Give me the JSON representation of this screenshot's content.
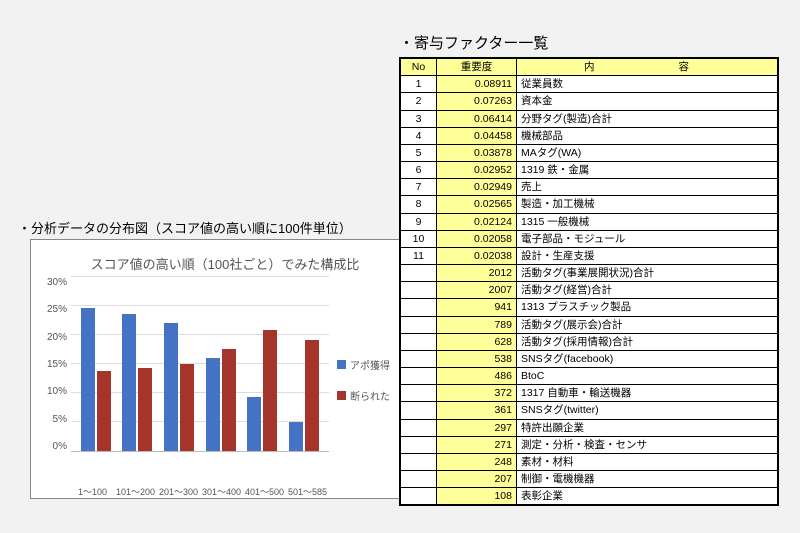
{
  "chart_section_label": "・分析データの分布図（スコア値の高い順に100件単位）",
  "table_section_label": "・寄与ファクター一覧",
  "chart": {
    "type": "bar",
    "title": "スコア値の高い順（100社ごと）でみた構成比",
    "categories": [
      "1～100",
      "101～200",
      "201～300",
      "301～400",
      "401～500",
      "501～585"
    ],
    "series": [
      {
        "name": "アポ獲得",
        "color": "#4472c4",
        "values": [
          24.5,
          23.5,
          22,
          16,
          9.2,
          5
        ]
      },
      {
        "name": "断られた",
        "color": "#a5352b",
        "values": [
          13.8,
          14.2,
          15,
          17.5,
          20.7,
          19
        ]
      }
    ],
    "y_max": 30,
    "y_tick": 5,
    "y_suffix": "%",
    "grid_color": "#dddddd",
    "axis_color": "#bbbbbb",
    "background": "#ffffff",
    "title_fontsize": 13,
    "label_fontsize": 10
  },
  "table": {
    "columns": [
      "No",
      "重要度",
      "内　　容"
    ],
    "rows": [
      [
        1,
        "0.08911",
        "従業員数"
      ],
      [
        2,
        "0.07263",
        "資本金"
      ],
      [
        3,
        "0.06414",
        "分野タグ(製造)合計"
      ],
      [
        4,
        "0.04458",
        "機械部品"
      ],
      [
        5,
        "0.03878",
        "MAタグ(WA)"
      ],
      [
        6,
        "0.02952",
        "1319 鉄・金属"
      ],
      [
        7,
        "0.02949",
        "売上"
      ],
      [
        8,
        "0.02565",
        "製造・加工機械"
      ],
      [
        9,
        "0.02124",
        "1315 一般機械"
      ],
      [
        10,
        "0.02058",
        "電子部品・モジュール"
      ],
      [
        11,
        "0.02038",
        "設計・生産支援"
      ],
      [
        "",
        "2012",
        "活動タグ(事業展開状況)合計"
      ],
      [
        "",
        "2007",
        "活動タグ(経営)合計"
      ],
      [
        "",
        "941",
        "1313 プラスチック製品"
      ],
      [
        "",
        "789",
        "活動タグ(展示会)合計"
      ],
      [
        "",
        "628",
        "活動タグ(採用情報)合計"
      ],
      [
        "",
        "538",
        "SNSタグ(facebook)"
      ],
      [
        "",
        "486",
        "BtoC"
      ],
      [
        "",
        "372",
        "1317 自動車・輸送機器"
      ],
      [
        "",
        "361",
        "SNSタグ(twitter)"
      ],
      [
        "",
        "297",
        "特許出願企業"
      ],
      [
        "",
        "271",
        "測定・分析・検査・センサ"
      ],
      [
        "",
        "248",
        "素材・材料"
      ],
      [
        "",
        "207",
        "制御・電機機器"
      ],
      [
        "",
        "108",
        "表彰企業"
      ]
    ],
    "header_bg": "#ffff99",
    "importance_bg": "#ffff99",
    "border_color": "#000000",
    "font_size": 10.5
  }
}
